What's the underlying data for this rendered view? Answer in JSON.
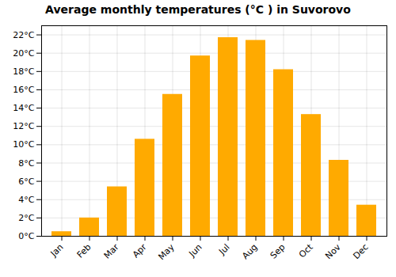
{
  "chart_data": {
    "type": "bar",
    "title": "Average monthly temperatures (°C ) in Suvorovo",
    "categories": [
      "Jan",
      "Feb",
      "Mar",
      "Apr",
      "May",
      "Jun",
      "Jul",
      "Aug",
      "Sep",
      "Oct",
      "Nov",
      "Dec"
    ],
    "values": [
      0.5,
      2.0,
      5.4,
      10.6,
      15.5,
      19.7,
      21.7,
      21.4,
      18.2,
      13.3,
      8.3,
      3.4
    ],
    "color": "#FFAA00",
    "ylim": [
      0,
      23
    ],
    "yticks": [
      {
        "value": 0,
        "label": "0°C"
      },
      {
        "value": 2,
        "label": "2°C"
      },
      {
        "value": 4,
        "label": "4°C"
      },
      {
        "value": 6,
        "label": "6°C"
      },
      {
        "value": 8,
        "label": "8°C"
      },
      {
        "value": 10,
        "label": "10°C"
      },
      {
        "value": 12,
        "label": "12°C"
      },
      {
        "value": 14,
        "label": "14°C"
      },
      {
        "value": 16,
        "label": "16°C"
      },
      {
        "value": 18,
        "label": "18°C"
      },
      {
        "value": 20,
        "label": "20°C"
      },
      {
        "value": 22,
        "label": "22°C"
      }
    ],
    "grid": true
  }
}
